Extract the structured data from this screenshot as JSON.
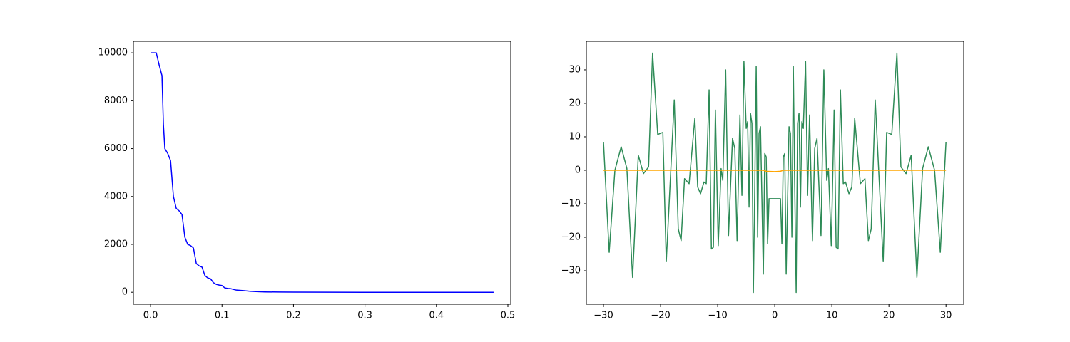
{
  "chart_data": [
    {
      "type": "line",
      "series": [
        {
          "color": "#0000ff",
          "x": [
            0.0,
            0.008,
            0.012,
            0.016,
            0.018,
            0.02,
            0.024,
            0.028,
            0.032,
            0.036,
            0.04,
            0.044,
            0.048,
            0.052,
            0.056,
            0.06,
            0.064,
            0.068,
            0.072,
            0.076,
            0.08,
            0.084,
            0.088,
            0.092,
            0.096,
            0.1,
            0.104,
            0.108,
            0.112,
            0.12,
            0.13,
            0.14,
            0.15,
            0.16,
            0.18,
            0.2,
            0.25,
            0.3,
            0.35,
            0.4,
            0.48
          ],
          "values": [
            10000,
            10000,
            9500,
            9050,
            7000,
            6000,
            5800,
            5500,
            4000,
            3500,
            3400,
            3250,
            2300,
            2000,
            1950,
            1850,
            1200,
            1100,
            1050,
            700,
            600,
            560,
            400,
            330,
            300,
            280,
            180,
            160,
            150,
            90,
            70,
            40,
            25,
            15,
            8,
            4,
            1,
            0,
            0,
            0,
            0
          ]
        }
      ],
      "xlim": [
        -0.024,
        0.504
      ],
      "xticks": [
        {
          "value": 0,
          "label": "0.0"
        },
        {
          "value": 0.1,
          "label": "0.1"
        },
        {
          "value": 0.2,
          "label": "0.2"
        },
        {
          "value": 0.3,
          "label": "0.3"
        },
        {
          "value": 0.4,
          "label": "0.4"
        },
        {
          "value": 0.5,
          "label": "0.5"
        }
      ],
      "ylim": [
        -500,
        10480
      ],
      "yticks": [
        0,
        2000,
        4000,
        6000,
        8000,
        10000
      ]
    },
    {
      "type": "line",
      "series": [
        {
          "color": "#2e8b57",
          "x": [
            -30,
            -29,
            -28,
            -26.9,
            -25.9,
            -24.9,
            -23.9,
            -23,
            -22.1,
            -21.4,
            -20.5,
            -19.6,
            -19,
            -17.6,
            -16.9,
            -16.4,
            -15.8,
            -15,
            -14,
            -13.5,
            -13,
            -12.4,
            -12,
            -11.5,
            -11.1,
            -10.75,
            -10.4,
            -9.9,
            -9.4,
            -9.1,
            -8.6,
            -8.1,
            -7.4,
            -7,
            -6.6,
            -6.1,
            -5.75,
            -5.4,
            -5,
            -4.75,
            -4.5,
            -4.25,
            -4,
            -3.75,
            -3.5,
            -3.25,
            -3,
            -2.75,
            -2.5,
            -2.25,
            -2,
            -1.75,
            -1.5,
            -1.25,
            -1,
            1,
            1.25,
            1.5,
            1.75,
            2,
            2.25,
            2.5,
            2.75,
            3,
            3.25,
            3.5,
            3.75,
            4,
            4.25,
            4.5,
            4.75,
            5,
            5.4,
            5.75,
            6.1,
            6.6,
            7,
            7.4,
            8.1,
            8.6,
            9.1,
            9.4,
            9.9,
            10.4,
            10.75,
            11.1,
            11.5,
            12,
            12.4,
            13,
            13.5,
            14,
            15,
            15.8,
            16.4,
            16.9,
            17.6,
            19,
            19.6,
            20.5,
            21.4,
            22.1,
            23,
            23.9,
            24.9,
            25.9,
            26.9,
            28,
            29,
            30
          ],
          "values": [
            8.5,
            -24.5,
            0,
            7,
            0.5,
            -32,
            4.5,
            -1,
            1,
            35,
            10.7,
            11.3,
            -27.3,
            21,
            -17.5,
            -21,
            -2.5,
            -4,
            15.5,
            -5,
            -7,
            -3.5,
            -4,
            24,
            -23.5,
            -23,
            18,
            -22.5,
            0.5,
            -3,
            30,
            -19.5,
            9.5,
            6.5,
            -21,
            16.5,
            -7.5,
            32.5,
            12.5,
            14.5,
            -11,
            17,
            14,
            -36.5,
            -5,
            31,
            -20,
            11,
            13,
            -8.5,
            -31,
            5,
            4,
            -22,
            -8.5,
            -8.5,
            -22,
            4,
            5,
            -31,
            -8.5,
            13,
            11,
            -20,
            31,
            -5,
            -36.5,
            14,
            17,
            -11,
            14.5,
            12.5,
            32.5,
            -7.5,
            16.5,
            -21,
            6.5,
            9.5,
            -19.5,
            30,
            -3,
            0.5,
            -22.5,
            18,
            -23,
            -23.5,
            24,
            -4,
            -3.5,
            -7,
            -5,
            15.5,
            -4,
            -2.5,
            -21,
            -17.5,
            21,
            -27.3,
            11.3,
            10.7,
            35,
            1,
            -1,
            4.5,
            -32,
            0.5,
            7,
            0,
            -24.5,
            8.5
          ]
        },
        {
          "color": "#ffa500",
          "x": [
            -30,
            -2,
            -1.5,
            0,
            1,
            1.5,
            30
          ],
          "values": [
            0,
            0,
            -0.3,
            -0.4,
            -0.3,
            0,
            0
          ]
        }
      ],
      "xlim": [
        -33,
        33.1
      ],
      "xticks": [
        {
          "value": -30,
          "label": "−30"
        },
        {
          "value": -20,
          "label": "−20"
        },
        {
          "value": -10,
          "label": "−10"
        },
        0,
        10,
        20,
        30
      ],
      "ylim": [
        -40,
        38.5
      ],
      "yticks": [
        {
          "value": -30,
          "label": "−30"
        },
        {
          "value": -20,
          "label": "−20"
        },
        {
          "value": -10,
          "label": "−10"
        },
        0,
        10,
        20,
        30
      ]
    }
  ]
}
